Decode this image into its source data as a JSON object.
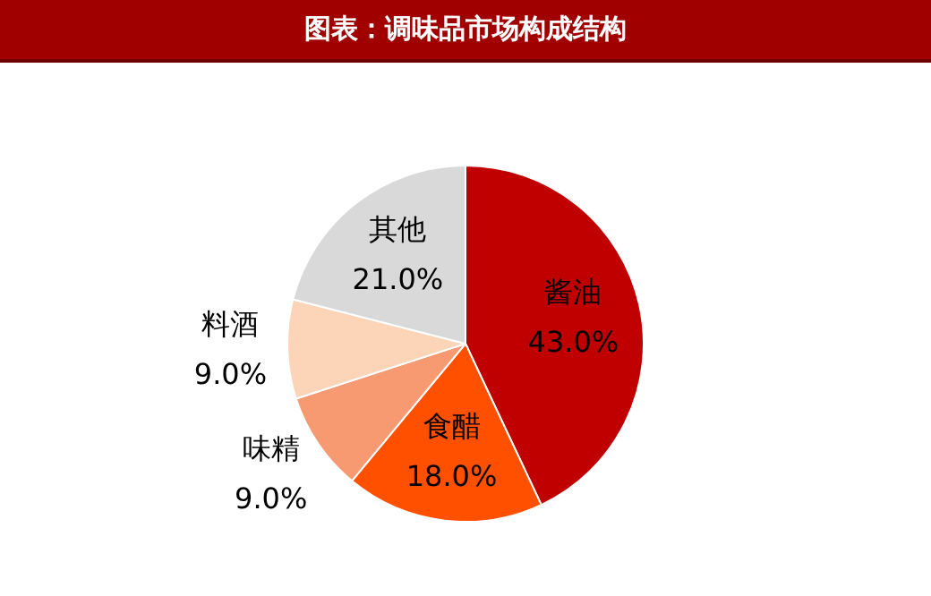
{
  "chart_data": {
    "type": "pie",
    "title": "图表：调味品市场构成结构",
    "categories": [
      "酱油",
      "食醋",
      "味精",
      "料酒",
      "其他"
    ],
    "values": [
      43,
      18,
      9,
      9,
      21
    ],
    "colors": [
      "#c00000",
      "#ff5000",
      "#f79a72",
      "#fcd5b8",
      "#d9d9d9"
    ],
    "value_labels": [
      "43.0%",
      "18.0%",
      "9.0%",
      "9.0%",
      "21.0%"
    ],
    "legend": false
  }
}
